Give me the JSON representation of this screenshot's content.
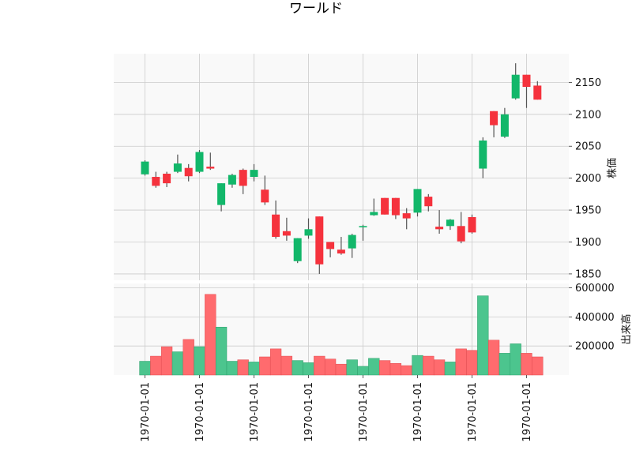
{
  "chart_data": {
    "type": "candlestick",
    "title": "ワールド",
    "colors": {
      "up": "#12b76a",
      "down": "#f5323d",
      "volume_up": "#4cc58e",
      "volume_down": "#ff6b6e",
      "wick": "#555555",
      "panel_bg": "#f9f9f9",
      "grid": "#cccccc"
    },
    "price_panel": {
      "ylabel": "株価",
      "ylim": [
        1840,
        2195
      ],
      "yticks": [
        1850,
        1900,
        1950,
        2000,
        2050,
        2100,
        2150
      ],
      "ytick_labels": [
        "1850",
        "1900",
        "1950",
        "2000",
        "2050",
        "2100",
        "2150"
      ]
    },
    "volume_panel": {
      "ylabel": "出来高",
      "ylim": [
        0,
        630000
      ],
      "yticks": [
        200000,
        400000,
        600000
      ],
      "ytick_labels": [
        "200000",
        "400000",
        "600000"
      ]
    },
    "xtick_labels": [
      "1970-01-01",
      "1970-01-01",
      "1970-01-01",
      "1970-01-01",
      "1970-01-01",
      "1970-01-01",
      "1970-01-01",
      "1970-01-01"
    ],
    "xtick_every": 5,
    "grid": true,
    "candles": [
      {
        "o": 2006,
        "h": 2028,
        "l": 2004,
        "c": 2026,
        "v": 95000
      },
      {
        "o": 2002,
        "h": 2010,
        "l": 1985,
        "c": 1988,
        "v": 130000
      },
      {
        "o": 2007,
        "h": 2010,
        "l": 1986,
        "c": 1992,
        "v": 195000
      },
      {
        "o": 2010,
        "h": 2037,
        "l": 2008,
        "c": 2023,
        "v": 160000
      },
      {
        "o": 2016,
        "h": 2022,
        "l": 1995,
        "c": 2003,
        "v": 245000
      },
      {
        "o": 2010,
        "h": 2044,
        "l": 2008,
        "c": 2041,
        "v": 195000
      },
      {
        "o": 2018,
        "h": 2040,
        "l": 2013,
        "c": 2015,
        "v": 555000
      },
      {
        "o": 1958,
        "h": 1992,
        "l": 1948,
        "c": 1992,
        "v": 330000
      },
      {
        "o": 1990,
        "h": 2007,
        "l": 1985,
        "c": 2005,
        "v": 95000
      },
      {
        "o": 2013,
        "h": 2015,
        "l": 1975,
        "c": 1988,
        "v": 105000
      },
      {
        "o": 2002,
        "h": 2022,
        "l": 1995,
        "c": 2013,
        "v": 90000
      },
      {
        "o": 1982,
        "h": 2004,
        "l": 1958,
        "c": 1962,
        "v": 125000
      },
      {
        "o": 1943,
        "h": 1965,
        "l": 1905,
        "c": 1908,
        "v": 180000
      },
      {
        "o": 1917,
        "h": 1938,
        "l": 1902,
        "c": 1910,
        "v": 130000
      },
      {
        "o": 1870,
        "h": 1906,
        "l": 1867,
        "c": 1906,
        "v": 100000
      },
      {
        "o": 1910,
        "h": 1937,
        "l": 1905,
        "c": 1920,
        "v": 85000
      },
      {
        "o": 1940,
        "h": 1940,
        "l": 1850,
        "c": 1865,
        "v": 130000
      },
      {
        "o": 1900,
        "h": 1900,
        "l": 1876,
        "c": 1889,
        "v": 110000
      },
      {
        "o": 1888,
        "h": 1908,
        "l": 1880,
        "c": 1882,
        "v": 75000
      },
      {
        "o": 1890,
        "h": 1913,
        "l": 1875,
        "c": 1911,
        "v": 105000
      },
      {
        "o": 1923,
        "h": 1927,
        "l": 1902,
        "c": 1925,
        "v": 60000
      },
      {
        "o": 1942,
        "h": 1968,
        "l": 1941,
        "c": 1947,
        "v": 115000
      },
      {
        "o": 1969,
        "h": 1969,
        "l": 1943,
        "c": 1943,
        "v": 100000
      },
      {
        "o": 1969,
        "h": 1969,
        "l": 1936,
        "c": 1942,
        "v": 80000
      },
      {
        "o": 1945,
        "h": 1953,
        "l": 1920,
        "c": 1937,
        "v": 65000
      },
      {
        "o": 1946,
        "h": 1983,
        "l": 1940,
        "c": 1983,
        "v": 135000
      },
      {
        "o": 1971,
        "h": 1975,
        "l": 1948,
        "c": 1956,
        "v": 130000
      },
      {
        "o": 1924,
        "h": 1950,
        "l": 1913,
        "c": 1920,
        "v": 105000
      },
      {
        "o": 1925,
        "h": 1936,
        "l": 1919,
        "c": 1935,
        "v": 90000
      },
      {
        "o": 1925,
        "h": 1947,
        "l": 1898,
        "c": 1901,
        "v": 180000
      },
      {
        "o": 1939,
        "h": 1943,
        "l": 1913,
        "c": 1915,
        "v": 170000
      },
      {
        "o": 2015,
        "h": 2064,
        "l": 2000,
        "c": 2059,
        "v": 545000
      },
      {
        "o": 2105,
        "h": 2105,
        "l": 2064,
        "c": 2083,
        "v": 240000
      },
      {
        "o": 2065,
        "h": 2110,
        "l": 2063,
        "c": 2100,
        "v": 150000
      },
      {
        "o": 2125,
        "h": 2180,
        "l": 2123,
        "c": 2162,
        "v": 215000
      },
      {
        "o": 2162,
        "h": 2162,
        "l": 2110,
        "c": 2143,
        "v": 150000
      },
      {
        "o": 2145,
        "h": 2152,
        "l": 2123,
        "c": 2123,
        "v": 125000
      }
    ]
  }
}
